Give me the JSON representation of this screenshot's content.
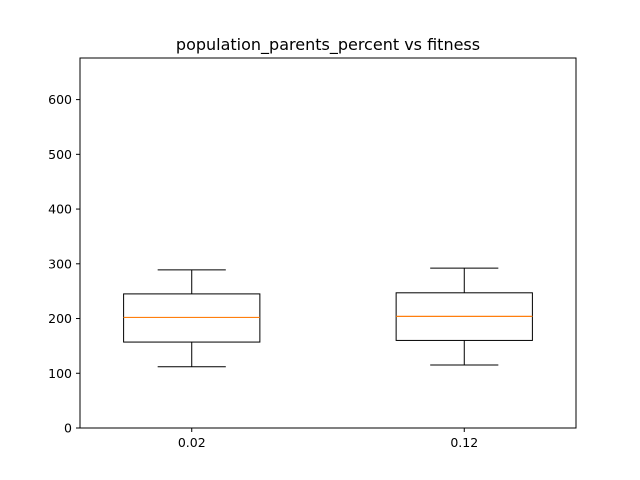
{
  "chart_data": {
    "type": "box",
    "title": "population_parents_percent vs fitness",
    "xlabel": "",
    "ylabel": "",
    "categories": [
      "0.02",
      "0.12"
    ],
    "boxes": [
      {
        "label": "0.02",
        "whisker_low": 112,
        "q1": 157,
        "median": 202,
        "q3": 245,
        "whisker_high": 289
      },
      {
        "label": "0.12",
        "whisker_low": 115,
        "q1": 160,
        "median": 204,
        "q3": 247,
        "whisker_high": 292
      }
    ],
    "ylim": [
      0,
      676
    ],
    "yticks": [
      0,
      100,
      200,
      300,
      400,
      500,
      600
    ],
    "xlim": [
      0.59,
      2.41
    ],
    "grid": false,
    "colors": {
      "box": "#000000",
      "median": "#ff7f0e",
      "frame": "#000000"
    }
  }
}
